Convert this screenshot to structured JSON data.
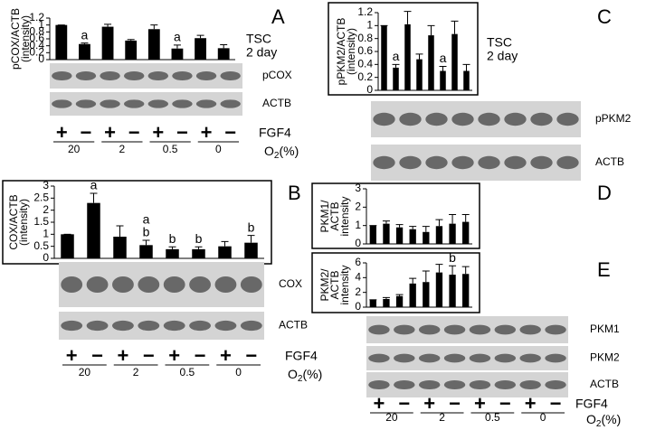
{
  "chart_data": [
    {
      "type": "bar",
      "panel": "A",
      "ylabel": [
        "pCOX/ACTB",
        "(intensity)"
      ],
      "condition": [
        "TSC",
        "2 day"
      ],
      "color": "#000000",
      "values": [
        1.0,
        0.45,
        0.95,
        0.55,
        0.88,
        0.32,
        0.62,
        0.33
      ],
      "errors": [
        0,
        0.03,
        0.07,
        0.03,
        0.12,
        0.1,
        0.08,
        0.1
      ],
      "annotations": [
        [],
        [
          "a"
        ],
        [],
        [],
        [],
        [
          "a"
        ],
        [],
        []
      ],
      "ylim": [
        0,
        1.2
      ],
      "yticks": [
        0,
        0.2,
        0.4,
        0.6,
        0.8,
        1,
        1.2
      ],
      "box": false
    },
    {
      "type": "bar",
      "panel": "B",
      "ylabel": [
        "COX/ACTB",
        "(intensity)"
      ],
      "color": "#000000",
      "values": [
        1.0,
        2.3,
        0.9,
        0.55,
        0.38,
        0.38,
        0.5,
        0.65
      ],
      "errors": [
        0,
        0.4,
        0.45,
        0.2,
        0.1,
        0.1,
        0.2,
        0.3
      ],
      "annotations": [
        [],
        [
          "a"
        ],
        [],
        [
          "a",
          "b"
        ],
        [
          "b"
        ],
        [
          "b"
        ],
        [],
        [
          "b"
        ]
      ],
      "ylim": [
        0,
        3
      ],
      "yticks": [
        0,
        0.5,
        1,
        1.5,
        2,
        2.5,
        3
      ],
      "box": true
    },
    {
      "type": "bar",
      "panel": "C",
      "ylabel": [
        "pPKM2/ACTB",
        "(intensity)"
      ],
      "condition": [
        "TSC",
        "2 day"
      ],
      "color": "#000000",
      "values": [
        1.0,
        0.35,
        1.02,
        0.48,
        0.85,
        0.3,
        0.87,
        0.3
      ],
      "errors": [
        0,
        0.05,
        0.2,
        0.08,
        0.15,
        0.07,
        0.2,
        0.1
      ],
      "annotations": [
        [],
        [
          "a"
        ],
        [],
        [],
        [],
        [
          "a"
        ],
        [],
        []
      ],
      "ylim": [
        0,
        1.2
      ],
      "yticks": [
        0,
        0.2,
        0.4,
        0.6,
        0.8,
        1,
        1.2
      ],
      "box": true
    },
    {
      "type": "bar",
      "panel": "D",
      "ylabel": [
        "PKM1/",
        "ACTB",
        "intensity"
      ],
      "color": "#000000",
      "values": [
        1.0,
        1.1,
        0.9,
        0.8,
        0.65,
        0.97,
        1.1,
        1.2
      ],
      "errors": [
        0,
        0.15,
        0.15,
        0.15,
        0.3,
        0.35,
        0.5,
        0.4
      ],
      "annotations": [
        [],
        [],
        [],
        [],
        [],
        [],
        [],
        []
      ],
      "ylim": [
        0,
        3
      ],
      "yticks": [
        0,
        1,
        2,
        3
      ],
      "box": true
    },
    {
      "type": "bar",
      "panel": "E",
      "ylabel": [
        "PKM2/",
        "ACTB",
        "intensity"
      ],
      "color": "#000000",
      "values": [
        1.0,
        1.1,
        1.5,
        3.2,
        3.4,
        4.7,
        4.4,
        4.5
      ],
      "errors": [
        0,
        0.2,
        0.2,
        0.7,
        1.5,
        1.1,
        1.2,
        1.0
      ],
      "annotations": [
        [],
        [],
        [],
        [],
        [],
        [],
        [
          "b"
        ],
        []
      ],
      "ylim": [
        0,
        6
      ],
      "yticks": [
        0,
        2,
        4,
        6
      ],
      "box": true
    }
  ],
  "blot_groups": [
    {
      "blots": [
        "pCOX",
        "ACTB"
      ],
      "fgf4": "FGF4",
      "signs": [
        "+",
        "−",
        "+",
        "−",
        "+",
        "−",
        "+",
        "−"
      ],
      "o2_values": [
        "20",
        "2",
        "0.5",
        "0"
      ],
      "o2_label": [
        "O",
        "2",
        "(%)"
      ]
    },
    {
      "blots": [
        "COX",
        "ACTB"
      ],
      "fgf4": "FGF4",
      "signs": [
        "+",
        "−",
        "+",
        "−",
        "+",
        "−",
        "+",
        "−"
      ],
      "o2_values": [
        "20",
        "2",
        "0.5",
        "0"
      ],
      "o2_label": [
        "O",
        "2",
        "(%)"
      ]
    },
    {
      "blots": [
        "pPKM2",
        "ACTB"
      ]
    },
    {
      "blots": [
        "PKM1",
        "PKM2",
        "ACTB"
      ],
      "fgf4": "FGF4",
      "signs": [
        "+",
        "−",
        "+",
        "−",
        "+",
        "−",
        "+",
        "−"
      ],
      "o2_values": [
        "20",
        "2",
        "0.5",
        "0"
      ],
      "o2_label": [
        "O",
        "2",
        "(%)"
      ]
    }
  ]
}
